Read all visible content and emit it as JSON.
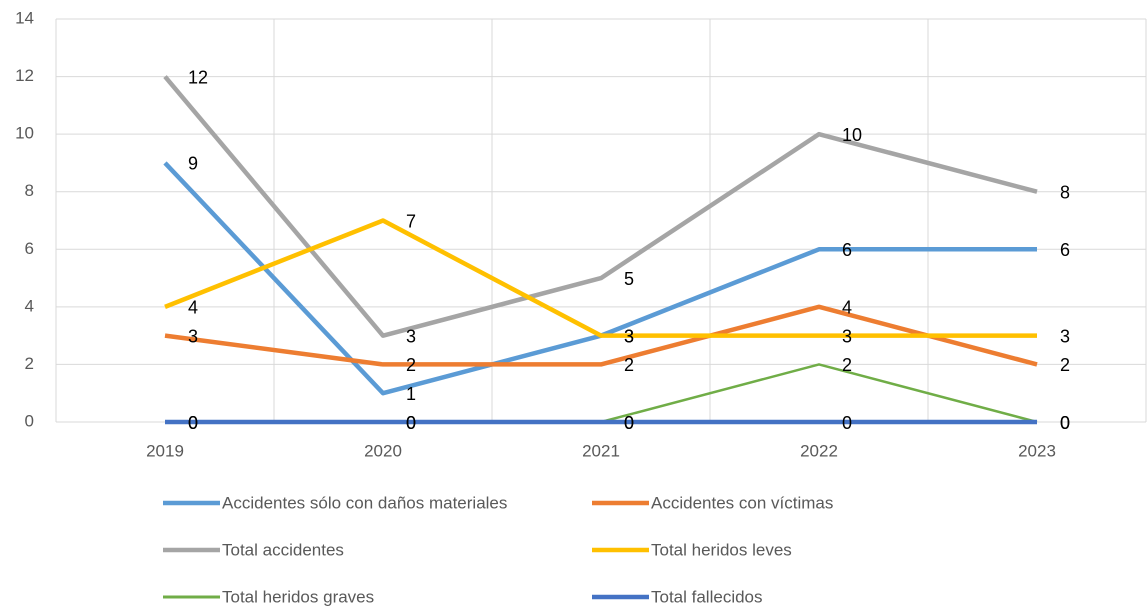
{
  "chart_data": {
    "type": "line",
    "categories": [
      "2019",
      "2020",
      "2021",
      "2022",
      "2023"
    ],
    "series": [
      {
        "name": "Accidentes sólo con daños materiales",
        "color": "#5b9bd5",
        "values": [
          9,
          1,
          3,
          6,
          6
        ]
      },
      {
        "name": "Accidentes con víctimas",
        "color": "#ed7d31",
        "values": [
          3,
          2,
          2,
          4,
          2
        ]
      },
      {
        "name": "Total accidentes",
        "color": "#a5a5a5",
        "values": [
          12,
          3,
          5,
          10,
          8
        ]
      },
      {
        "name": "Total heridos leves",
        "color": "#ffc000",
        "values": [
          4,
          7,
          3,
          3,
          3
        ]
      },
      {
        "name": "Total heridos graves",
        "color": "#70ad47",
        "values": [
          0,
          0,
          0,
          2,
          0
        ]
      },
      {
        "name": "Total fallecidos",
        "color": "#4472c4",
        "values": [
          0,
          0,
          0,
          0,
          0
        ]
      }
    ],
    "ylim": [
      0,
      14
    ],
    "yticks": [
      0,
      2,
      4,
      6,
      8,
      10,
      12,
      14
    ],
    "grid": true
  }
}
